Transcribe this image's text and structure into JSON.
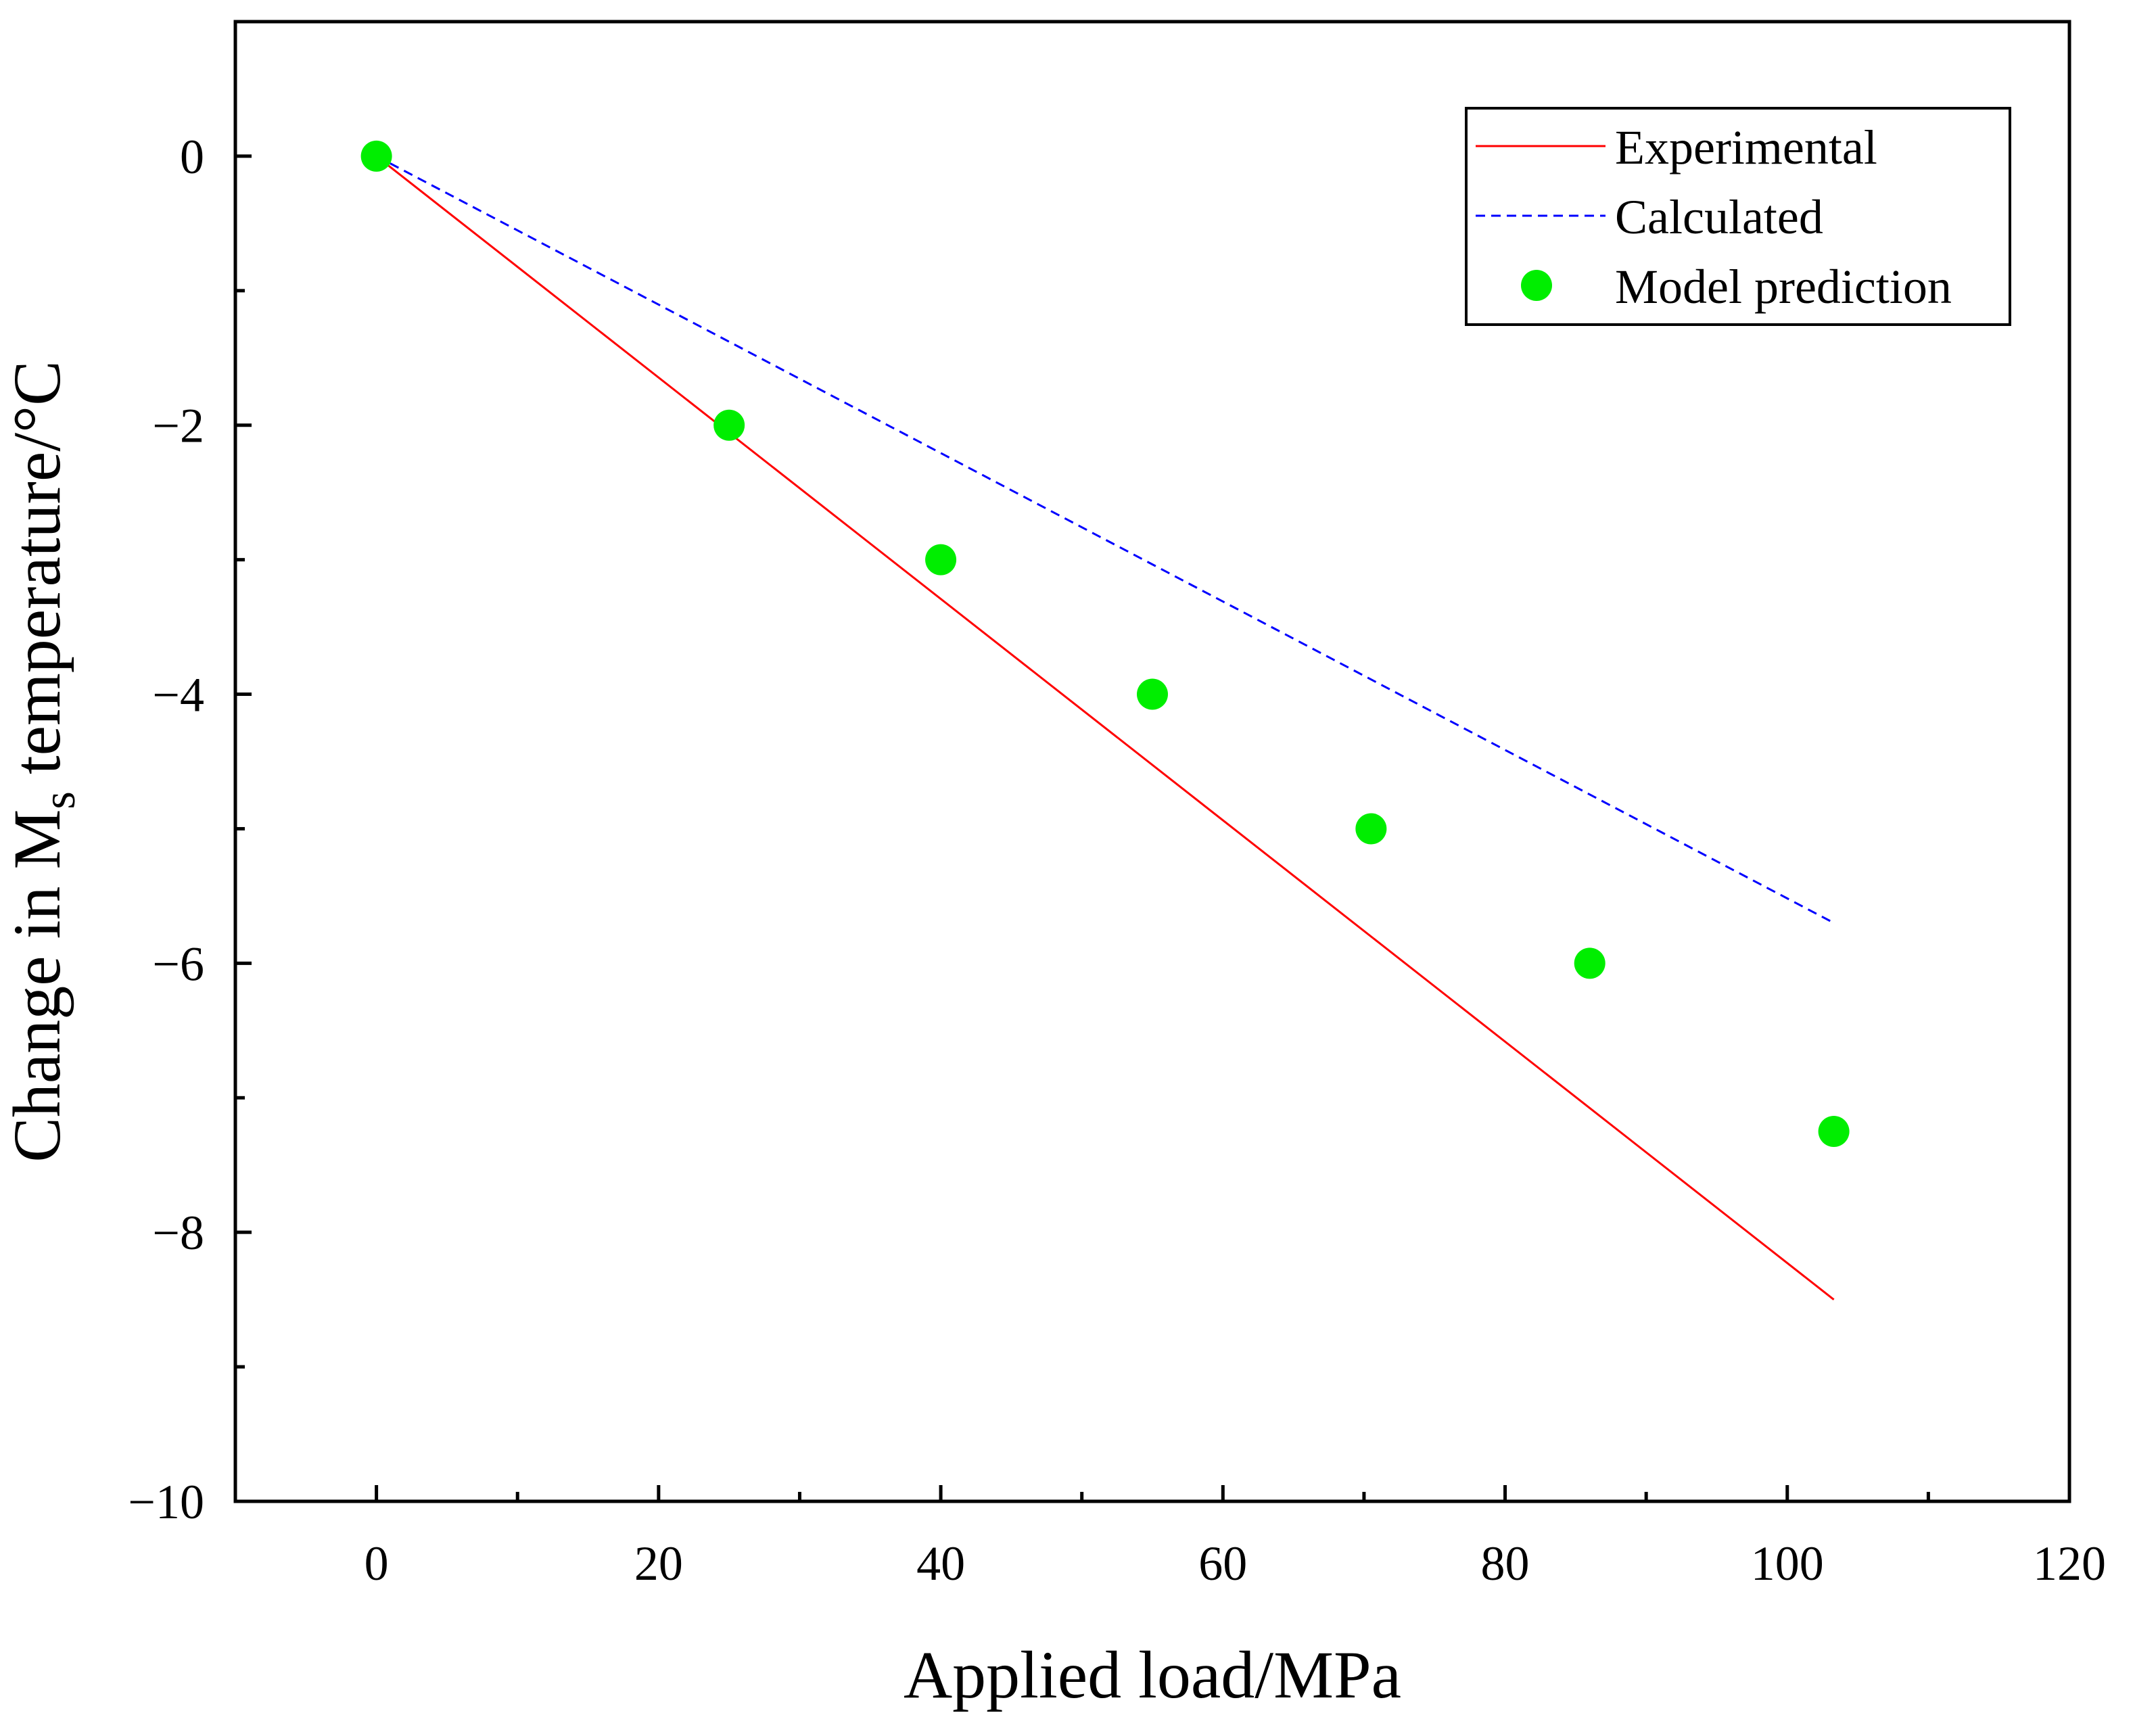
{
  "chart_data": {
    "type": "line",
    "title": "",
    "xlabel": "Applied load/MPa",
    "ylabel": {
      "prefix": "Change in M",
      "subscript": "s",
      "suffix": " temperature/°C"
    },
    "xlim": [
      -10,
      120
    ],
    "ylim": [
      -10,
      1
    ],
    "xticks": [
      0,
      20,
      40,
      60,
      80,
      100,
      120
    ],
    "xtick_labels": [
      "0",
      "20",
      "40",
      "60",
      "80",
      "100",
      "120"
    ],
    "xminor": [
      10,
      30,
      50,
      70,
      90,
      110
    ],
    "yticks": [
      0,
      -2,
      -4,
      -6,
      -8,
      -10
    ],
    "ytick_labels": [
      "0",
      "−2",
      "−4",
      "−6",
      "−8",
      "−10"
    ],
    "yminor": [
      -1,
      -3,
      -5,
      -7,
      -9
    ],
    "legend_position": "top-right",
    "series": [
      {
        "name": "Experimental",
        "kind": "line",
        "style": "solid",
        "color": "#ff0000",
        "x": [
          0,
          103.3
        ],
        "y": [
          0,
          -8.5
        ]
      },
      {
        "name": "Calculated",
        "kind": "line",
        "style": "dashed",
        "color": "#0000ff",
        "x": [
          0,
          103.3
        ],
        "y": [
          0,
          -5.7
        ]
      },
      {
        "name": "Model prediction",
        "kind": "scatter",
        "color": "#00ee00",
        "x": [
          0,
          25,
          40,
          55,
          70.5,
          86,
          103.3
        ],
        "y": [
          0,
          -2,
          -3,
          -4,
          -5,
          -6,
          -7.25
        ]
      }
    ]
  }
}
